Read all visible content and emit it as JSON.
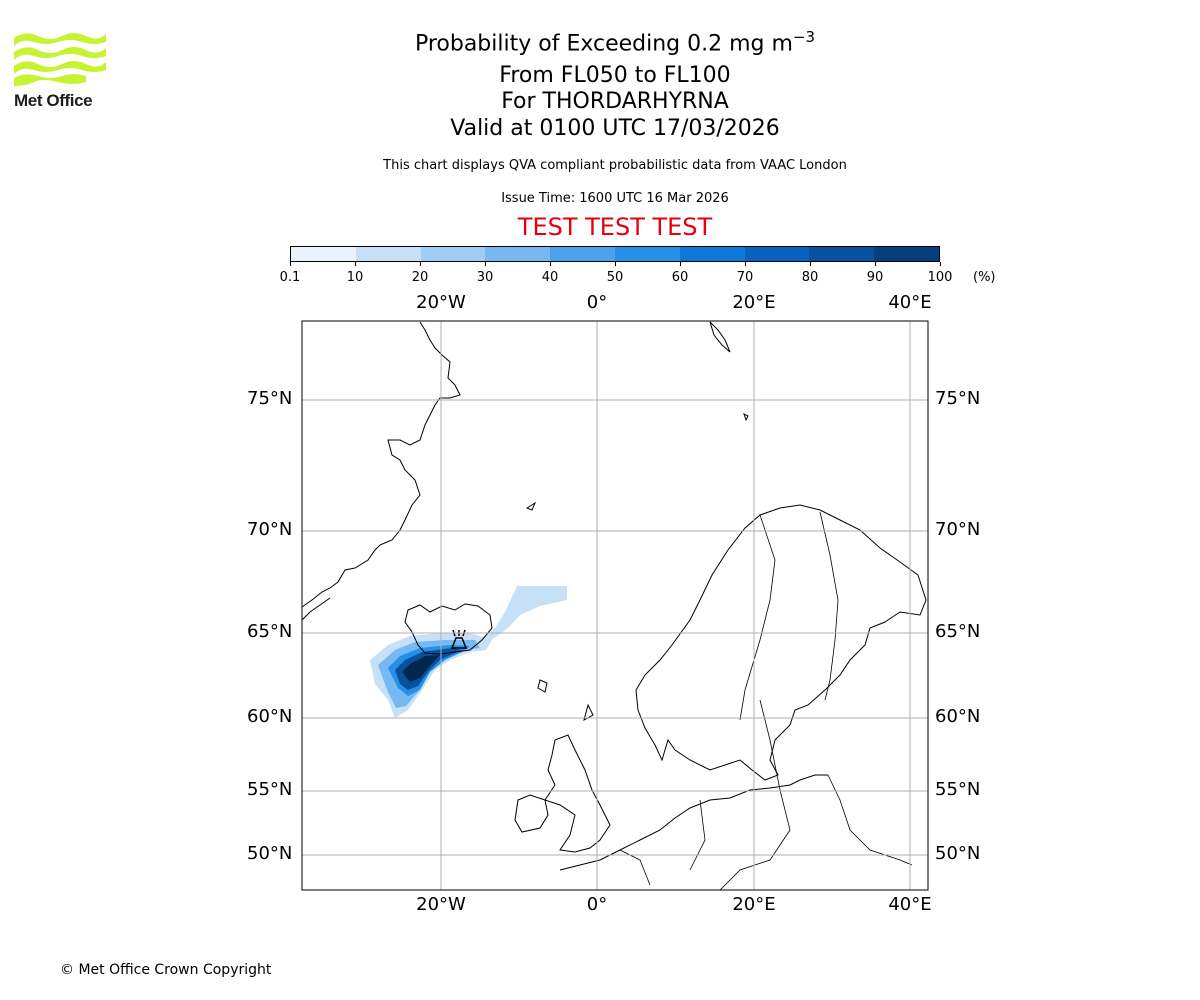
{
  "logo": {
    "text": "Met Office",
    "icon": "met-office-wave-icon",
    "color": "#c6f432"
  },
  "header": {
    "title_main": "Probability of Exceeding 0.2 mg m",
    "title_exp": "−3",
    "flight_levels": "From FL050 to FL100",
    "volcano": "For THORDARHYRNA",
    "valid_time": "Valid at 0100 UTC 17/03/2026",
    "description": "This chart displays QVA compliant probabilistic data from VAAC London",
    "issue_time": "Issue Time: 1600 UTC 16 Mar 2026",
    "test_banner": "TEST TEST TEST"
  },
  "colorbar": {
    "ticks": [
      "0.1",
      "10",
      "20",
      "30",
      "40",
      "50",
      "60",
      "70",
      "80",
      "90",
      "100"
    ],
    "unit": "(%)",
    "colors": [
      "#eaf3fd",
      "#c6e0f7",
      "#a0cdf4",
      "#76b8f1",
      "#4aa2ed",
      "#2590e8",
      "#0d78d9",
      "#0a62be",
      "#07519e",
      "#063f7d",
      "#03264f"
    ]
  },
  "map": {
    "lon_labels": [
      "20°W",
      "0°",
      "20°E",
      "40°E"
    ],
    "lat_labels": [
      "75°N",
      "70°N",
      "65°N",
      "60°N",
      "55°N",
      "50°N"
    ],
    "volcano_symbol": "volcano-icon"
  },
  "footer": {
    "copyright": "© Met Office Crown Copyright"
  }
}
